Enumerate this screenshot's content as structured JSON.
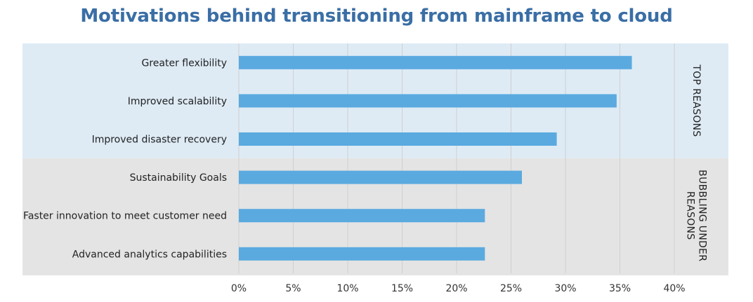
{
  "colors": {
    "title": "#3a6ea5",
    "bar": "#5aaae0",
    "top_band": "#deebf5",
    "bubbling_band": "#e4e4e4",
    "gridline": "#cfcfcf"
  },
  "chart_data": {
    "type": "bar",
    "orientation": "horizontal",
    "title": "Motivations behind transitioning from mainframe to cloud",
    "xlabel": "",
    "ylabel": "",
    "categories": [
      "Greater flexibility",
      "Improved scalability",
      "Improved disaster recovery",
      "Sustainability Goals",
      "Faster innovation to meet customer need",
      "Advanced analytics capabilities"
    ],
    "values": [
      36.1,
      34.7,
      29.2,
      26.0,
      22.6,
      22.6
    ],
    "xlim": [
      0,
      40
    ],
    "ticks": [
      0,
      5,
      10,
      15,
      20,
      25,
      30,
      35,
      40
    ],
    "tick_labels": [
      "0%",
      "5%",
      "10%",
      "15%",
      "20%",
      "25%",
      "30%",
      "35%",
      "40%"
    ],
    "grid": true,
    "groups": [
      {
        "label_lines": [
          "TOP REASONS"
        ],
        "first": 0,
        "last": 2,
        "band": "top_band"
      },
      {
        "label_lines": [
          "BUBBLING UNDER",
          "REASONS"
        ],
        "first": 3,
        "last": 5,
        "band": "bubbling_band"
      }
    ]
  }
}
